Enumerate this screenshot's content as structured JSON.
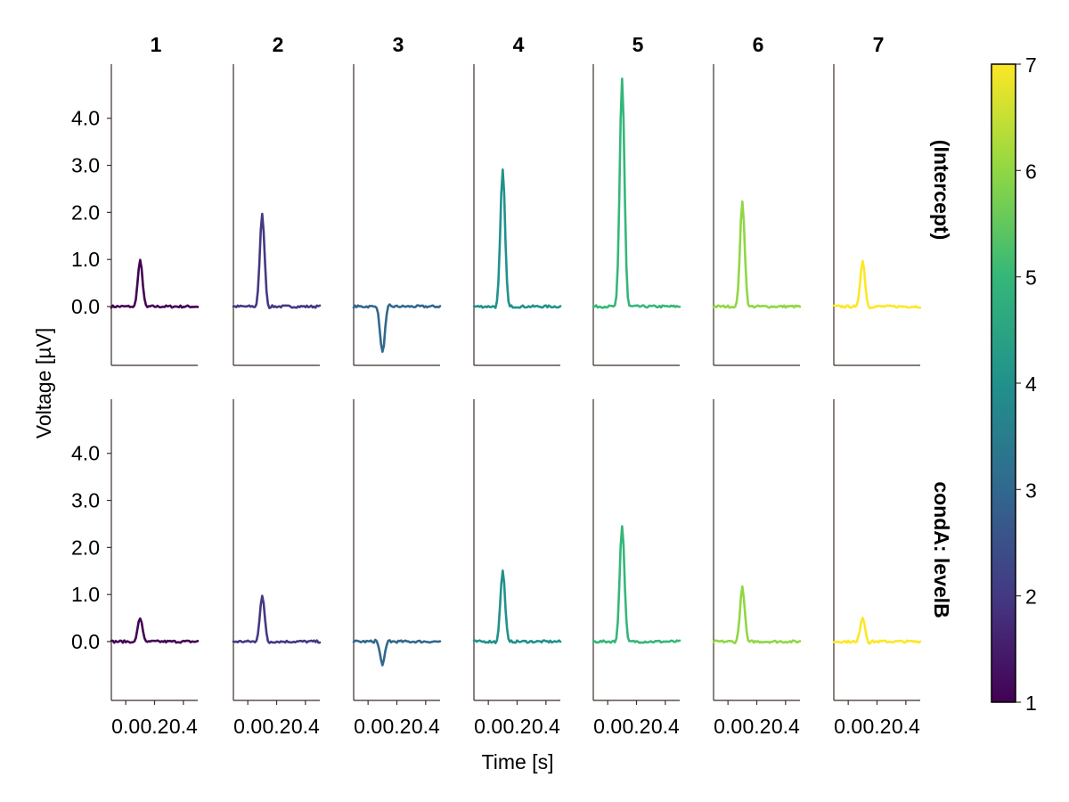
{
  "chart_data": {
    "type": "line",
    "title": "",
    "xlabel": "Time [s]",
    "ylabel": "Voltage [µV]",
    "xlim": [
      -0.1,
      0.5
    ],
    "ylim": [
      -1.25,
      5.15
    ],
    "xticks": [
      0.0,
      0.2,
      0.4
    ],
    "xtick_labels": [
      "0.0",
      "0.2",
      "0.4"
    ],
    "yticks": [
      0.0,
      1.0,
      2.0,
      3.0,
      4.0
    ],
    "ytick_labels": [
      "0.0",
      "1.0",
      "2.0",
      "3.0",
      "4.0"
    ],
    "columns": [
      "1",
      "2",
      "3",
      "4",
      "5",
      "6",
      "7"
    ],
    "rows": [
      "(Intercept)",
      "condA: levelB"
    ],
    "grid": false,
    "legend": "colorbar-right",
    "colorbar": {
      "range": [
        1,
        7
      ],
      "ticks": [
        "1",
        "2",
        "3",
        "4",
        "5",
        "6",
        "7"
      ],
      "colormap": "viridis",
      "stops": [
        "#440154",
        "#443983",
        "#31688e",
        "#21918c",
        "#35b779",
        "#90d743",
        "#fde725"
      ]
    },
    "peak_time": 0.1,
    "peak_width": 0.05,
    "panels": [
      {
        "row": 0,
        "col": 0,
        "color": "#440154",
        "peak": 0.97
      },
      {
        "row": 0,
        "col": 1,
        "color": "#443983",
        "peak": 1.95
      },
      {
        "row": 0,
        "col": 2,
        "color": "#31688e",
        "peak": -0.98
      },
      {
        "row": 0,
        "col": 3,
        "color": "#21918c",
        "peak": 2.9
      },
      {
        "row": 0,
        "col": 4,
        "color": "#35b779",
        "peak": 4.85
      },
      {
        "row": 0,
        "col": 5,
        "color": "#90d743",
        "peak": 2.22
      },
      {
        "row": 0,
        "col": 6,
        "color": "#fde725",
        "peak": 0.97
      },
      {
        "row": 1,
        "col": 0,
        "color": "#440154",
        "peak": 0.5
      },
      {
        "row": 1,
        "col": 1,
        "color": "#443983",
        "peak": 0.98
      },
      {
        "row": 1,
        "col": 2,
        "color": "#31688e",
        "peak": -0.48
      },
      {
        "row": 1,
        "col": 3,
        "color": "#21918c",
        "peak": 1.5
      },
      {
        "row": 1,
        "col": 4,
        "color": "#35b779",
        "peak": 2.47
      },
      {
        "row": 1,
        "col": 5,
        "color": "#90d743",
        "peak": 1.15
      },
      {
        "row": 1,
        "col": 6,
        "color": "#fde725",
        "peak": 0.52
      }
    ]
  }
}
